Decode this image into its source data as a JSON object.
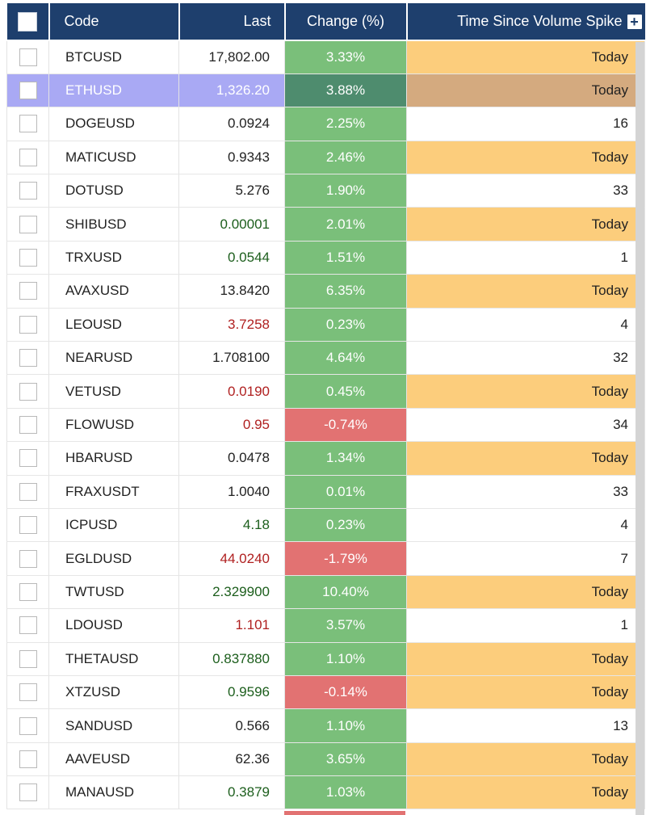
{
  "columns": {
    "code": "Code",
    "last": "Last",
    "change": "Change (%)",
    "time": "Time Since Volume Spike",
    "add_icon": "plus-icon"
  },
  "colors": {
    "header_bg": "#1e3f6d",
    "positive": "#7abf7a",
    "negative": "#e27272",
    "today": "#fccd7c",
    "selected_row": "#a9a9f4"
  },
  "rows": [
    {
      "code": "BTCUSD",
      "last": "17,802.00",
      "last_tone": "",
      "change": "3.33%",
      "dir": "up",
      "time": "Today",
      "today": true
    },
    {
      "code": "ETHUSD",
      "last": "1,326.20",
      "last_tone": "",
      "change": "3.88%",
      "dir": "up",
      "time": "Today",
      "today": true,
      "selected": true
    },
    {
      "code": "DOGEUSD",
      "last": "0.0924",
      "last_tone": "",
      "change": "2.25%",
      "dir": "up",
      "time": "16",
      "today": false
    },
    {
      "code": "MATICUSD",
      "last": "0.9343",
      "last_tone": "",
      "change": "2.46%",
      "dir": "up",
      "time": "Today",
      "today": true
    },
    {
      "code": "DOTUSD",
      "last": "5.276",
      "last_tone": "",
      "change": "1.90%",
      "dir": "up",
      "time": "33",
      "today": false
    },
    {
      "code": "SHIBUSD",
      "last": "0.00001",
      "last_tone": "pos",
      "change": "2.01%",
      "dir": "up",
      "time": "Today",
      "today": true
    },
    {
      "code": "TRXUSD",
      "last": "0.0544",
      "last_tone": "pos",
      "change": "1.51%",
      "dir": "up",
      "time": "1",
      "today": false
    },
    {
      "code": "AVAXUSD",
      "last": "13.8420",
      "last_tone": "",
      "change": "6.35%",
      "dir": "up",
      "time": "Today",
      "today": true
    },
    {
      "code": "LEOUSD",
      "last": "3.7258",
      "last_tone": "neg",
      "change": "0.23%",
      "dir": "up",
      "time": "4",
      "today": false
    },
    {
      "code": "NEARUSD",
      "last": "1.708100",
      "last_tone": "",
      "change": "4.64%",
      "dir": "up",
      "time": "32",
      "today": false
    },
    {
      "code": "VETUSD",
      "last": "0.0190",
      "last_tone": "neg",
      "change": "0.45%",
      "dir": "up",
      "time": "Today",
      "today": true
    },
    {
      "code": "FLOWUSD",
      "last": "0.95",
      "last_tone": "neg",
      "change": "-0.74%",
      "dir": "down",
      "time": "34",
      "today": false
    },
    {
      "code": "HBARUSD",
      "last": "0.0478",
      "last_tone": "",
      "change": "1.34%",
      "dir": "up",
      "time": "Today",
      "today": true
    },
    {
      "code": "FRAXUSDT",
      "last": "1.0040",
      "last_tone": "",
      "change": "0.01%",
      "dir": "up",
      "time": "33",
      "today": false
    },
    {
      "code": "ICPUSD",
      "last": "4.18",
      "last_tone": "pos",
      "change": "0.23%",
      "dir": "up",
      "time": "4",
      "today": false
    },
    {
      "code": "EGLDUSD",
      "last": "44.0240",
      "last_tone": "neg",
      "change": "-1.79%",
      "dir": "down",
      "time": "7",
      "today": false
    },
    {
      "code": "TWTUSD",
      "last": "2.329900",
      "last_tone": "pos",
      "change": "10.40%",
      "dir": "up",
      "time": "Today",
      "today": true
    },
    {
      "code": "LDOUSD",
      "last": "1.101",
      "last_tone": "neg",
      "change": "3.57%",
      "dir": "up",
      "time": "1",
      "today": false
    },
    {
      "code": "THETAUSD",
      "last": "0.837880",
      "last_tone": "pos",
      "change": "1.10%",
      "dir": "up",
      "time": "Today",
      "today": true
    },
    {
      "code": "XTZUSD",
      "last": "0.9596",
      "last_tone": "pos",
      "change": "-0.14%",
      "dir": "down",
      "time": "Today",
      "today": true
    },
    {
      "code": "SANDUSD",
      "last": "0.566",
      "last_tone": "",
      "change": "1.10%",
      "dir": "up",
      "time": "13",
      "today": false
    },
    {
      "code": "AAVEUSD",
      "last": "62.36",
      "last_tone": "",
      "change": "3.65%",
      "dir": "up",
      "time": "Today",
      "today": true
    },
    {
      "code": "MANAUSD",
      "last": "0.3879",
      "last_tone": "pos",
      "change": "1.03%",
      "dir": "up",
      "time": "Today",
      "today": true
    }
  ]
}
